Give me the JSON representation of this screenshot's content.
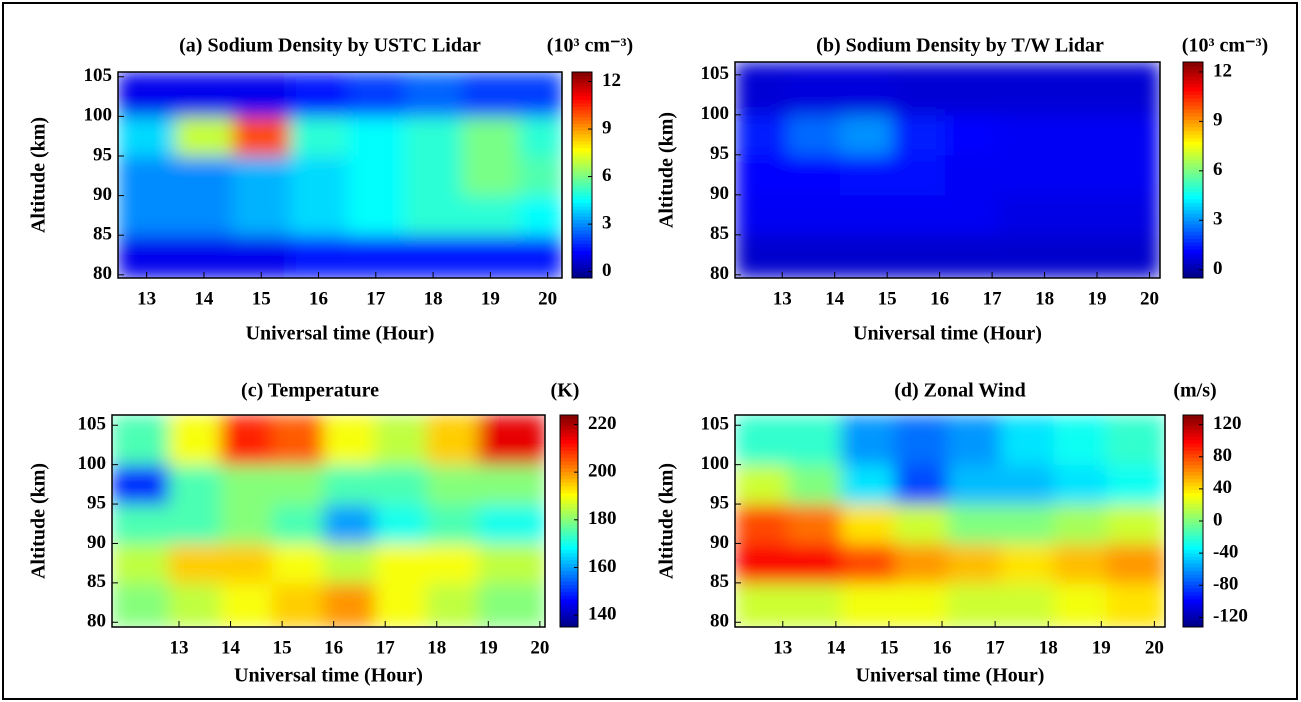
{
  "chart_data": [
    {
      "type": "heatmap",
      "title": "(a) Sodium Density by USTC Lidar",
      "units": "(10³ cm⁻³)",
      "xlabel": "Universal time (Hour)",
      "ylabel": "Altitude (km)",
      "colormap": "jet",
      "xlim": [
        12.5,
        20.25
      ],
      "ylim": [
        79.6,
        105.6
      ],
      "xticks": [
        13,
        14,
        15,
        16,
        17,
        18,
        19,
        20
      ],
      "yticks": [
        80,
        85,
        90,
        95,
        100,
        105
      ],
      "clim": [
        -0.4,
        12.6
      ],
      "cticks": [
        0,
        3,
        6,
        9,
        12
      ],
      "x_edges": [
        12.5,
        13.5,
        14.5,
        15.5,
        16.5,
        17.5,
        18.5,
        19.5,
        20.25
      ],
      "y_edges": [
        79.6,
        85,
        90,
        95,
        100,
        105.6
      ],
      "z": [
        [
          1,
          1,
          1,
          1.5,
          1.5,
          1.5,
          1.5,
          1.5
        ],
        [
          3,
          3,
          3.5,
          4,
          4.5,
          5,
          5,
          4.5
        ],
        [
          3,
          3,
          3.5,
          4,
          4.5,
          5,
          6,
          5.5
        ],
        [
          4,
          7,
          10,
          5,
          4.5,
          5,
          6,
          5
        ],
        [
          1,
          1,
          1,
          1.5,
          2,
          2.5,
          2,
          2
        ]
      ]
    },
    {
      "type": "heatmap",
      "title": "(b) Sodium Density by T/W Lidar",
      "units": "(10³ cm⁻³)",
      "xlabel": "Universal time (Hour)",
      "ylabel": "Altitude (km)",
      "colormap": "jet",
      "xlim": [
        12.1,
        20.2
      ],
      "ylim": [
        79.6,
        106.6
      ],
      "xticks": [
        13,
        14,
        15,
        16,
        17,
        18,
        19,
        20
      ],
      "yticks": [
        80,
        85,
        90,
        95,
        100,
        105
      ],
      "clim": [
        -0.5,
        12.6
      ],
      "cticks": [
        0,
        3,
        6,
        9,
        12
      ],
      "x_edges": [
        12.1,
        13.1,
        14.1,
        15.1,
        16.1,
        17.1,
        18.1,
        19.1,
        20.2
      ],
      "y_edges": [
        79.6,
        85,
        90,
        95,
        100,
        106.6
      ],
      "z": [
        [
          0.5,
          0.5,
          0.5,
          0.5,
          0.5,
          0.5,
          0.5,
          0.5
        ],
        [
          1,
          1,
          1,
          1,
          1,
          0.8,
          0.8,
          0.8
        ],
        [
          1.2,
          1.2,
          1.3,
          1.3,
          1,
          1,
          1,
          1
        ],
        [
          1.5,
          2.5,
          3,
          1.5,
          1.2,
          1,
          1,
          1
        ],
        [
          0.6,
          0.7,
          0.7,
          0.6,
          0.6,
          0.6,
          0.6,
          0.6
        ]
      ]
    },
    {
      "type": "heatmap",
      "title": "(c) Temperature",
      "units": "(K)",
      "xlabel": "Universal time (Hour)",
      "ylabel": "Altitude (km)",
      "colormap": "jet",
      "xlim": [
        11.7,
        20.1
      ],
      "ylim": [
        79.4,
        106.3
      ],
      "xticks": [
        13,
        14,
        15,
        16,
        17,
        18,
        19,
        20
      ],
      "yticks": [
        80,
        85,
        90,
        95,
        100,
        105
      ],
      "clim": [
        135,
        224
      ],
      "cticks": [
        140,
        160,
        180,
        200,
        220
      ],
      "x_edges": [
        11.7,
        12.8,
        13.8,
        14.8,
        15.8,
        16.8,
        17.8,
        18.8,
        20.1
      ],
      "y_edges": [
        79.4,
        85,
        90,
        95,
        100,
        106.3
      ],
      "z": [
        [
          180,
          185,
          190,
          195,
          200,
          190,
          185,
          180
        ],
        [
          185,
          195,
          195,
          190,
          185,
          190,
          190,
          185
        ],
        [
          175,
          175,
          180,
          175,
          160,
          170,
          175,
          170
        ],
        [
          150,
          175,
          180,
          180,
          175,
          175,
          180,
          180
        ],
        [
          175,
          190,
          210,
          205,
          190,
          185,
          195,
          215
        ]
      ]
    },
    {
      "type": "heatmap",
      "title": "(d) Zonal Wind",
      "units": "(m/s)",
      "xlabel": "Universal time (Hour)",
      "ylabel": "Altitude (km)",
      "colormap": "jet",
      "xlim": [
        12.1,
        20.2
      ],
      "ylim": [
        79.4,
        106.3
      ],
      "xticks": [
        13,
        14,
        15,
        16,
        17,
        18,
        19,
        20
      ],
      "yticks": [
        80,
        85,
        90,
        95,
        100,
        105
      ],
      "clim": [
        -132,
        132
      ],
      "cticks": [
        -120,
        -80,
        -40,
        0,
        40,
        80,
        120
      ],
      "x_edges": [
        12.1,
        13.1,
        14.1,
        15.1,
        16.1,
        17.1,
        18.1,
        19.1,
        20.2
      ],
      "y_edges": [
        79.4,
        85,
        90,
        95,
        100,
        106.3
      ],
      "z": [
        [
          20,
          20,
          30,
          30,
          20,
          20,
          30,
          40
        ],
        [
          100,
          100,
          80,
          60,
          50,
          40,
          50,
          60
        ],
        [
          80,
          70,
          40,
          20,
          0,
          0,
          10,
          20
        ],
        [
          20,
          0,
          -40,
          -80,
          -50,
          -50,
          -40,
          -30
        ],
        [
          -20,
          -20,
          -60,
          -70,
          -60,
          -40,
          -30,
          -20
        ]
      ]
    }
  ]
}
